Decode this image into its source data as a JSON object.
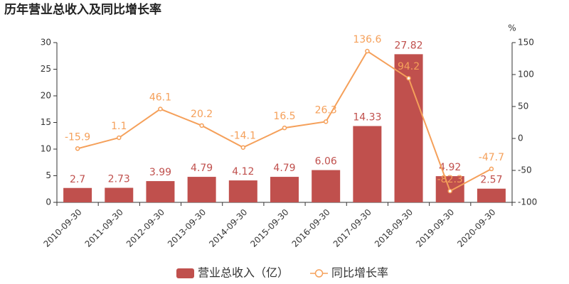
{
  "chart_data": {
    "type": "bar",
    "title": "历年营业总收入及同比增长率",
    "categories": [
      "2010-09-30",
      "2011-09-30",
      "2012-09-30",
      "2013-09-30",
      "2014-09-30",
      "2015-09-30",
      "2016-09-30",
      "2017-09-30",
      "2018-09-30",
      "2019-09-30",
      "2020-09-30"
    ],
    "series": [
      {
        "name": "营业总收入（亿）",
        "type": "bar",
        "color": "#c0504d",
        "values": [
          2.7,
          2.73,
          3.99,
          4.79,
          4.12,
          4.79,
          6.06,
          14.33,
          27.82,
          4.92,
          2.57
        ]
      },
      {
        "name": "同比增长率",
        "type": "line",
        "axis": "y2",
        "color": "#f5a05a",
        "values": [
          -15.9,
          1.1,
          46.1,
          20.2,
          -14.1,
          16.5,
          26.3,
          136.6,
          94.2,
          -82.3,
          -47.7
        ]
      }
    ],
    "ylim": [
      0,
      30
    ],
    "yticks": [
      0,
      5,
      10,
      15,
      20,
      25,
      30
    ],
    "y2lim": [
      -100,
      150
    ],
    "y2ticks": [
      -100,
      -50,
      0,
      50,
      100,
      150
    ],
    "y2label": "%",
    "grid": false,
    "legend": "bottom"
  }
}
